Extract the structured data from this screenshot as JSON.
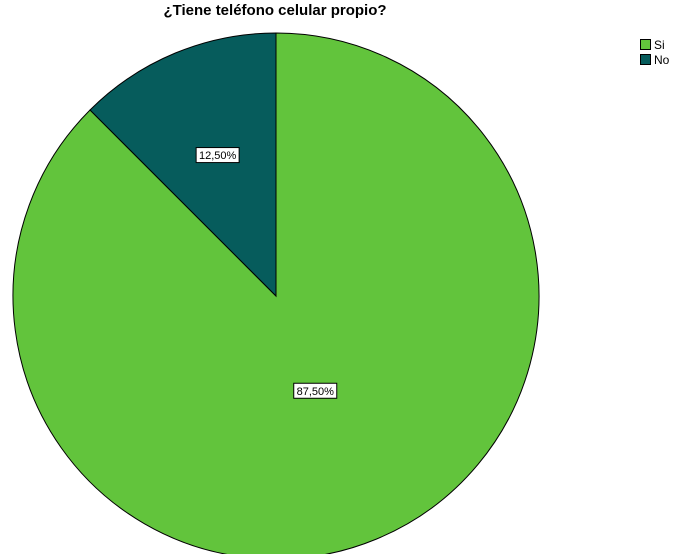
{
  "chart_data": {
    "type": "pie",
    "title": "¿Tiene teléfono celular propio?",
    "categories": [
      "Si",
      "No"
    ],
    "values": [
      87.5,
      12.5
    ],
    "data_labels": [
      "87,50%",
      "12,50%"
    ],
    "colors": [
      "#62c43c",
      "#065c5c"
    ],
    "legend_position": "top-right",
    "start_angle_deg": 0,
    "direction": "counterclockwise-from-top for No slice"
  }
}
